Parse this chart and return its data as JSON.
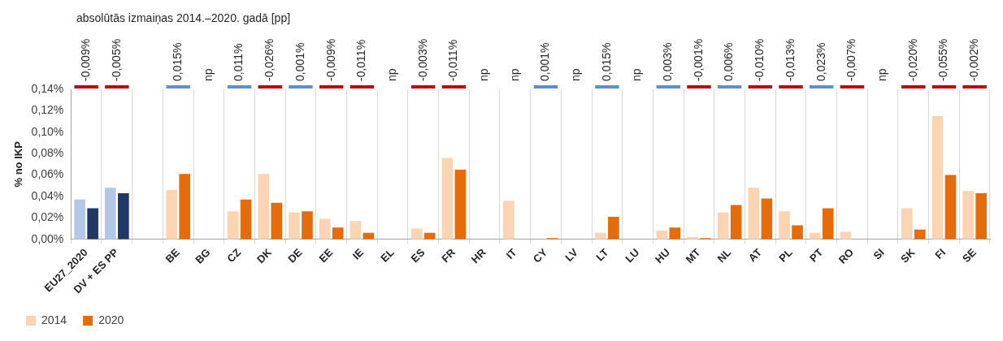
{
  "chart_data": {
    "type": "bar",
    "title": "absolūtās izmaiņas 2014.–2020. gadā [pp]",
    "ylabel": "% no IKP",
    "categories": [
      "EU27_2020",
      "DV + ES PP",
      null,
      "BE",
      "BG",
      "CZ",
      "DK",
      "DE",
      "EE",
      "IE",
      "EL",
      "ES",
      "FR",
      "HR",
      "IT",
      "CY",
      "LV",
      "LT",
      "LU",
      "HU",
      "MT",
      "NL",
      "AT",
      "PL",
      "PT",
      "RO",
      "SI",
      "SK",
      "FI",
      "SE"
    ],
    "series": [
      {
        "name": "2014",
        "color": "#fbd4b4",
        "colors": [
          "#b4c7e7",
          "#b4c7e7",
          "#fbd4b4",
          "#fbd4b4",
          "#fbd4b4",
          "#fbd4b4",
          "#fbd4b4",
          "#fbd4b4",
          "#fbd4b4",
          "#fbd4b4",
          "#fbd4b4",
          "#fbd4b4",
          "#fbd4b4",
          "#fbd4b4",
          "#fbd4b4",
          "#fbd4b4",
          "#fbd4b4",
          "#fbd4b4",
          "#fbd4b4",
          "#fbd4b4",
          "#fbd4b4",
          "#fbd4b4",
          "#fbd4b4",
          "#fbd4b4",
          "#fbd4b4",
          "#fbd4b4",
          "#fbd4b4",
          "#fbd4b4",
          "#fbd4b4",
          "#fbd4b4"
        ],
        "values": [
          0.037,
          0.048,
          null,
          0.046,
          null,
          0.026,
          0.061,
          0.025,
          0.019,
          0.017,
          null,
          0.01,
          0.076,
          null,
          0.036,
          0,
          null,
          0.006,
          null,
          0.008,
          0.002,
          0.025,
          0.048,
          0.026,
          0.006,
          0.007,
          null,
          0.029,
          0.115,
          0.045
        ]
      },
      {
        "name": "2020",
        "color": "#e46c0a",
        "colors": [
          "#1f3864",
          "#1f3864",
          "#e46c0a",
          "#e46c0a",
          "#e46c0a",
          "#e46c0a",
          "#e46c0a",
          "#e46c0a",
          "#e46c0a",
          "#e46c0a",
          "#e46c0a",
          "#e46c0a",
          "#e46c0a",
          "#e46c0a",
          "#e46c0a",
          "#e46c0a",
          "#e46c0a",
          "#e46c0a",
          "#e46c0a",
          "#e46c0a",
          "#e46c0a",
          "#e46c0a",
          "#e46c0a",
          "#e46c0a",
          "#e46c0a",
          "#e46c0a",
          "#e46c0a",
          "#e46c0a",
          "#e46c0a",
          "#e46c0a"
        ],
        "values": [
          0.029,
          0.043,
          null,
          0.061,
          null,
          0.037,
          0.034,
          0.026,
          0.011,
          0.006,
          null,
          0.006,
          0.065,
          null,
          null,
          0.001,
          null,
          0.021,
          null,
          0.011,
          0.001,
          0.032,
          0.038,
          0.013,
          0.029,
          0,
          null,
          0.009,
          0.06,
          0.043
        ]
      }
    ],
    "ylim": [
      0,
      0.14
    ],
    "yticks": [
      {
        "value": 0,
        "label": "0,00%"
      },
      {
        "value": 0.02,
        "label": "0,02%"
      },
      {
        "value": 0.04,
        "label": "0,04%"
      },
      {
        "value": 0.06,
        "label": "0,06%"
      },
      {
        "value": 0.08,
        "label": "0,08%"
      },
      {
        "value": 0.1,
        "label": "0,10%"
      },
      {
        "value": 0.12,
        "label": "0,12%"
      },
      {
        "value": 0.14,
        "label": "0,14%"
      }
    ],
    "grid": "x",
    "legend": "bottom",
    "annotations": [
      "-0,009%",
      "-0,005%",
      "0,015%",
      "np",
      "0,011%",
      "-0,026%",
      "0,001%",
      "-0,009%",
      "-0,011%",
      "np",
      "-0,003%",
      "-0,011%",
      "np",
      "np",
      "0,001%",
      "np",
      "0,015%",
      "np",
      "0,003%",
      "-0,001%",
      "0,006%",
      "-0,010%",
      "-0,013%",
      "0,023%",
      "-0,007%",
      "np",
      "-0,020%",
      "-0,055%",
      "-0,002%"
    ]
  }
}
